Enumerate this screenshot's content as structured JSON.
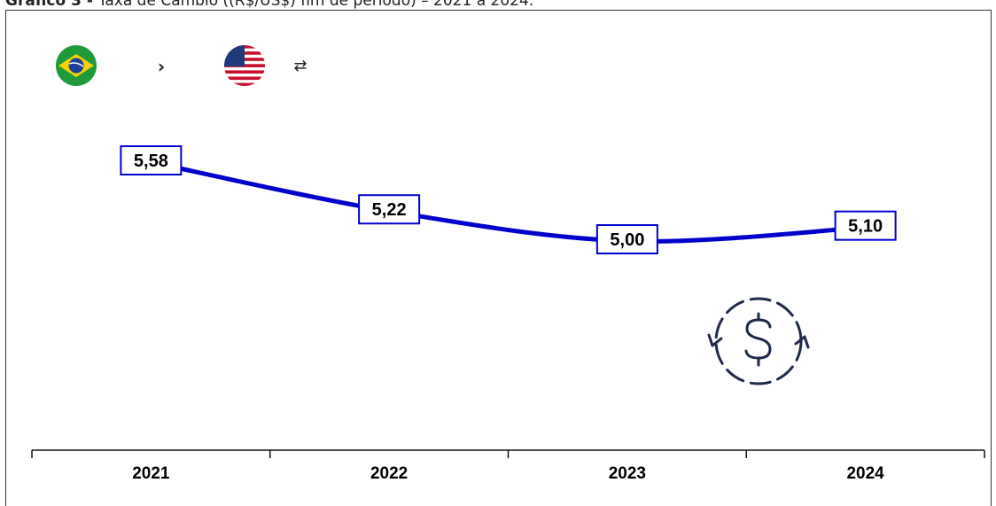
{
  "title": {
    "bold": "Gráfico 3 - ",
    "rest": "Taxa de Câmbio ((R$/US$) fim de período) – 2021 a 2024."
  },
  "header_icons": {
    "from_flag": "brazil-flag-icon",
    "arrow": "chevron-right-icon",
    "to_flag": "usa-flag-icon",
    "swap": "swap-arrows-icon",
    "arrow_glyph": "›",
    "swap_glyph": "⇄"
  },
  "decor_icon": "currency-exchange-dollar-icon",
  "colors": {
    "line": "#0000cc",
    "label_border": "#0000cc",
    "icon": "#1f2a4a"
  },
  "chart_data": {
    "type": "line",
    "categories": [
      "2021",
      "2022",
      "2023",
      "2024"
    ],
    "values": [
      5.58,
      5.22,
      5.0,
      5.1
    ],
    "data_labels": [
      "5,58",
      "5,22",
      "5,00",
      "5,10"
    ],
    "title": "",
    "xlabel": "",
    "ylabel": "",
    "grid": false,
    "legend": "none"
  }
}
